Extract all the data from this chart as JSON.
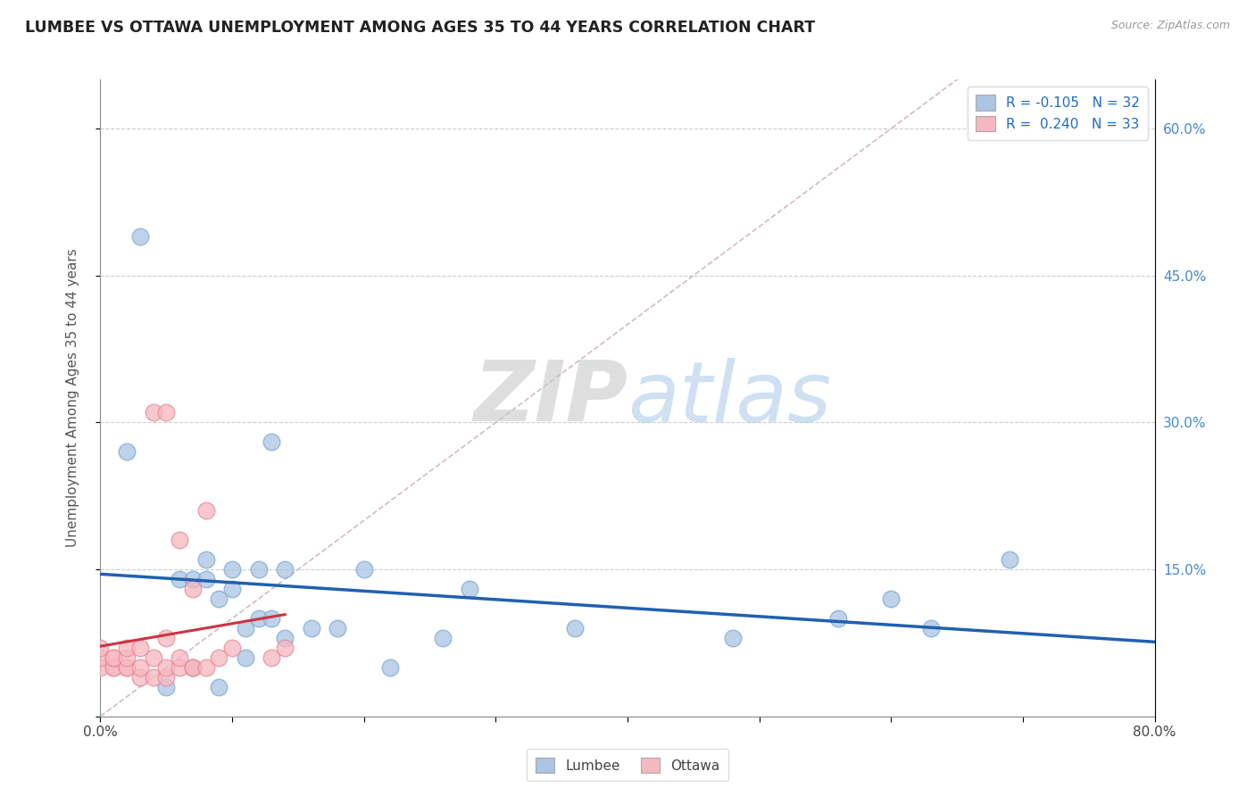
{
  "title": "LUMBEE VS OTTAWA UNEMPLOYMENT AMONG AGES 35 TO 44 YEARS CORRELATION CHART",
  "source_text": "Source: ZipAtlas.com",
  "ylabel": "Unemployment Among Ages 35 to 44 years",
  "xlim": [
    0.0,
    0.8
  ],
  "ylim": [
    0.0,
    0.65
  ],
  "yticks_right": [
    0.0,
    0.15,
    0.3,
    0.45,
    0.6
  ],
  "ytick_labels_right": [
    "",
    "15.0%",
    "30.0%",
    "45.0%",
    "60.0%"
  ],
  "legend_r_lumbee": "R = -0.105",
  "legend_n_lumbee": "N = 32",
  "legend_r_ottawa": "R =  0.240",
  "legend_n_ottawa": "N = 33",
  "lumbee_color": "#aac4e2",
  "lumbee_edge": "#7aaad4",
  "ottawa_color": "#f5b8c0",
  "ottawa_edge": "#e88898",
  "trend_lumbee_color": "#2060b0",
  "trend_ottawa_color": "#cc3344",
  "diagonal_color": "#d0b0c8",
  "watermark_zip": "ZIP",
  "watermark_atlas": "atlas",
  "lumbee_x": [
    0.02,
    0.03,
    0.05,
    0.06,
    0.07,
    0.07,
    0.08,
    0.08,
    0.09,
    0.09,
    0.1,
    0.1,
    0.11,
    0.11,
    0.12,
    0.12,
    0.13,
    0.13,
    0.14,
    0.14,
    0.16,
    0.18,
    0.2,
    0.22,
    0.26,
    0.28,
    0.36,
    0.48,
    0.56,
    0.6,
    0.63,
    0.69
  ],
  "lumbee_y": [
    0.27,
    0.49,
    0.03,
    0.14,
    0.05,
    0.14,
    0.14,
    0.16,
    0.03,
    0.12,
    0.13,
    0.15,
    0.06,
    0.09,
    0.1,
    0.15,
    0.1,
    0.28,
    0.15,
    0.08,
    0.09,
    0.09,
    0.15,
    0.05,
    0.08,
    0.13,
    0.09,
    0.08,
    0.1,
    0.12,
    0.09,
    0.16
  ],
  "ottawa_x": [
    0.0,
    0.0,
    0.0,
    0.01,
    0.01,
    0.01,
    0.01,
    0.02,
    0.02,
    0.02,
    0.02,
    0.03,
    0.03,
    0.03,
    0.04,
    0.04,
    0.04,
    0.05,
    0.05,
    0.05,
    0.05,
    0.06,
    0.06,
    0.06,
    0.07,
    0.07,
    0.07,
    0.08,
    0.08,
    0.09,
    0.1,
    0.13,
    0.14
  ],
  "ottawa_y": [
    0.05,
    0.06,
    0.07,
    0.05,
    0.05,
    0.06,
    0.06,
    0.05,
    0.05,
    0.06,
    0.07,
    0.04,
    0.05,
    0.07,
    0.04,
    0.06,
    0.31,
    0.04,
    0.05,
    0.08,
    0.31,
    0.05,
    0.06,
    0.18,
    0.05,
    0.05,
    0.13,
    0.05,
    0.21,
    0.06,
    0.07,
    0.06,
    0.07
  ]
}
